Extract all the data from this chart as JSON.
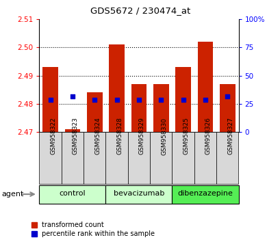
{
  "title": "GDS5672 / 230474_at",
  "samples": [
    "GSM958322",
    "GSM958323",
    "GSM958324",
    "GSM958328",
    "GSM958329",
    "GSM958330",
    "GSM958325",
    "GSM958326",
    "GSM958327"
  ],
  "transformed_count": [
    2.493,
    2.471,
    2.484,
    2.501,
    2.487,
    2.487,
    2.493,
    2.502,
    2.487
  ],
  "ylim_left": [
    2.47,
    2.51
  ],
  "ylim_right": [
    0,
    100
  ],
  "yticks_left": [
    2.47,
    2.48,
    2.49,
    2.5,
    2.51
  ],
  "yticks_right": [
    0,
    25,
    50,
    75,
    100
  ],
  "ytick_labels_right": [
    "0",
    "25",
    "50",
    "75",
    "100%"
  ],
  "bar_bottom": 2.47,
  "bar_color": "#cc2200",
  "percentile_color": "#0000cc",
  "percentile_actual": [
    2.4815,
    2.4825,
    2.4815,
    2.4815,
    2.4815,
    2.4815,
    2.4815,
    2.4815,
    2.4825
  ],
  "group_labels": [
    "control",
    "bevacizumab",
    "dibenzazepine"
  ],
  "group_boundaries": [
    0,
    3,
    6,
    9
  ],
  "group_colors": [
    "#ccffcc",
    "#ccffcc",
    "#55ee55"
  ],
  "agent_label": "agent",
  "legend_items": [
    {
      "label": "transformed count",
      "color": "#cc2200"
    },
    {
      "label": "percentile rank within the sample",
      "color": "#0000cc"
    }
  ],
  "bar_width": 0.7,
  "grid_dotted": [
    2.48,
    2.49,
    2.5
  ],
  "bg_color": "#ffffff"
}
